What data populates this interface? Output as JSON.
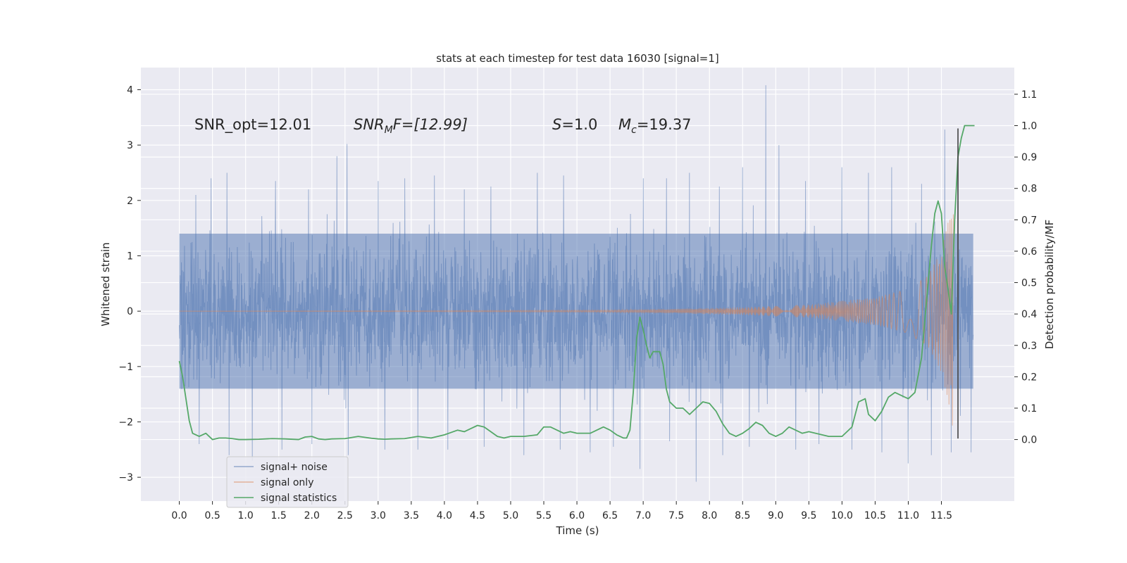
{
  "chart_data": {
    "type": "line",
    "title": "stats at each timestep for test data 16030 [signal=1]",
    "xlabel": "Time (s)",
    "ylabel_left": "Whitened strain",
    "ylabel_right": "Detection probability/MF",
    "xlim": [
      -0.58,
      12.6
    ],
    "ylim_left": [
      -3.43,
      4.4
    ],
    "ylim_right": [
      -0.196,
      1.185
    ],
    "x_ticks": [
      0.0,
      0.5,
      1.0,
      1.5,
      2.0,
      2.5,
      3.0,
      3.5,
      4.0,
      4.5,
      5.0,
      5.5,
      6.0,
      6.5,
      7.0,
      7.5,
      8.0,
      8.5,
      9.0,
      9.5,
      10.0,
      10.5,
      11.0,
      11.5
    ],
    "x_tick_labels": [
      "0.0",
      "0.5",
      "1.0",
      "1.5",
      "2.0",
      "2.5",
      "3.0",
      "3.5",
      "4.0",
      "4.5",
      "5.0",
      "5.5",
      "6.0",
      "6.5",
      "7.0",
      "7.5",
      "8.0",
      "8.5",
      "9.0",
      "9.5",
      "10.0",
      "10.5",
      "11.0",
      "11.5"
    ],
    "y_left_ticks": [
      -3,
      -2,
      -1,
      0,
      1,
      2,
      3,
      4
    ],
    "y_left_tick_labels": [
      "−3",
      "−2",
      "−1",
      "0",
      "1",
      "2",
      "3",
      "4"
    ],
    "y_right_ticks": [
      0.0,
      0.1,
      0.2,
      0.3,
      0.4,
      0.5,
      0.6,
      0.7,
      0.8,
      0.9,
      1.0,
      1.1
    ],
    "y_right_tick_labels": [
      "0.0",
      "0.1",
      "0.2",
      "0.3",
      "0.4",
      "0.5",
      "0.6",
      "0.7",
      "0.8",
      "0.9",
      "1.0",
      "1.1"
    ],
    "annotations": {
      "snr_opt": "SNR_opt=12.01",
      "snr_mf_sym": "SNR",
      "snr_mf_sub": "M",
      "snr_mf_rest": "F=[12.99]",
      "s_sym": "S",
      "s_rest": "=1.0",
      "mc_sym": "M",
      "mc_sub": "c",
      "mc_rest": "=19.37"
    },
    "legend": {
      "location": "lower left",
      "entries": [
        "signal+ noise",
        "signal only",
        "signal statistics"
      ]
    },
    "series": [
      {
        "name": "signal+ noise",
        "axis": "left",
        "color": "#4c72b0",
        "style": "noise-band",
        "x_range": [
          0.0,
          11.98
        ],
        "typical_range": [
          -1.4,
          1.4
        ],
        "peak_max": 4.08,
        "peak_min": -3.08,
        "upper_spikes": [
          [
            0.25,
            2.1
          ],
          [
            0.48,
            2.4
          ],
          [
            0.72,
            2.5
          ],
          [
            1.1,
            2.3
          ],
          [
            1.45,
            2.35
          ],
          [
            1.95,
            2.2
          ],
          [
            2.38,
            2.8
          ],
          [
            2.53,
            3.02
          ],
          [
            3.0,
            2.35
          ],
          [
            3.4,
            2.4
          ],
          [
            3.85,
            2.45
          ],
          [
            4.3,
            2.2
          ],
          [
            4.7,
            2.25
          ],
          [
            5.4,
            2.5
          ],
          [
            5.8,
            2.45
          ],
          [
            6.2,
            2.3
          ],
          [
            6.55,
            2.2
          ],
          [
            7.0,
            2.4
          ],
          [
            7.35,
            2.4
          ],
          [
            7.7,
            2.5
          ],
          [
            8.15,
            2.25
          ],
          [
            8.5,
            2.6
          ],
          [
            8.85,
            4.08
          ],
          [
            9.05,
            3.0
          ],
          [
            9.45,
            2.35
          ],
          [
            10.0,
            2.6
          ],
          [
            10.4,
            2.5
          ],
          [
            10.75,
            2.6
          ],
          [
            11.2,
            2.3
          ],
          [
            11.55,
            3.28
          ],
          [
            11.75,
            3.3
          ],
          [
            11.95,
            2.4
          ]
        ],
        "lower_spikes": [
          [
            0.3,
            -2.4
          ],
          [
            0.75,
            -2.6
          ],
          [
            1.1,
            -2.7
          ],
          [
            1.55,
            -2.5
          ],
          [
            2.0,
            -2.4
          ],
          [
            2.55,
            -2.6
          ],
          [
            3.1,
            -2.5
          ],
          [
            3.6,
            -2.5
          ],
          [
            4.05,
            -2.5
          ],
          [
            4.6,
            -2.45
          ],
          [
            5.2,
            -2.6
          ],
          [
            5.75,
            -2.5
          ],
          [
            6.2,
            -2.55
          ],
          [
            6.55,
            -2.45
          ],
          [
            6.95,
            -2.85
          ],
          [
            7.4,
            -2.35
          ],
          [
            7.8,
            -3.08
          ],
          [
            8.2,
            -2.6
          ],
          [
            8.6,
            -2.45
          ],
          [
            9.3,
            -2.5
          ],
          [
            9.65,
            -2.4
          ],
          [
            10.15,
            -2.5
          ],
          [
            10.6,
            -2.55
          ],
          [
            11.0,
            -2.75
          ],
          [
            11.35,
            -2.6
          ],
          [
            11.65,
            -2.55
          ],
          [
            11.95,
            -2.55
          ]
        ]
      },
      {
        "name": "signal only",
        "axis": "left",
        "color": "#dd8452",
        "style": "chirp",
        "x_range": [
          0.0,
          11.68
        ],
        "amplitude_envelope": [
          [
            0.0,
            0.0
          ],
          [
            6.5,
            0.02
          ],
          [
            7.5,
            0.04
          ],
          [
            8.5,
            0.07
          ],
          [
            9.5,
            0.12
          ],
          [
            10.5,
            0.25
          ],
          [
            11.0,
            0.4
          ],
          [
            11.3,
            0.65
          ],
          [
            11.5,
            1.1
          ],
          [
            11.6,
            1.6
          ],
          [
            11.67,
            2.1
          ]
        ]
      },
      {
        "name": "signal statistics",
        "axis": "right",
        "color": "#55a868",
        "x": [
          0.0,
          0.05,
          0.1,
          0.15,
          0.2,
          0.3,
          0.4,
          0.5,
          0.6,
          0.7,
          0.8,
          0.9,
          1.0,
          1.2,
          1.4,
          1.6,
          1.8,
          1.9,
          2.0,
          2.1,
          2.2,
          2.3,
          2.5,
          2.7,
          2.9,
          3.0,
          3.1,
          3.2,
          3.4,
          3.6,
          3.8,
          4.0,
          4.2,
          4.3,
          4.4,
          4.5,
          4.6,
          4.7,
          4.8,
          4.9,
          5.0,
          5.2,
          5.4,
          5.5,
          5.6,
          5.7,
          5.8,
          5.9,
          6.0,
          6.2,
          6.4,
          6.5,
          6.6,
          6.7,
          6.75,
          6.8,
          6.85,
          6.9,
          6.95,
          7.0,
          7.05,
          7.1,
          7.15,
          7.2,
          7.25,
          7.3,
          7.35,
          7.4,
          7.5,
          7.6,
          7.7,
          7.8,
          7.9,
          8.0,
          8.1,
          8.2,
          8.3,
          8.4,
          8.5,
          8.6,
          8.7,
          8.8,
          8.9,
          9.0,
          9.1,
          9.2,
          9.3,
          9.4,
          9.5,
          9.6,
          9.8,
          10.0,
          10.15,
          10.25,
          10.35,
          10.4,
          10.5,
          10.6,
          10.7,
          10.8,
          10.9,
          11.0,
          11.1,
          11.2,
          11.3,
          11.35,
          11.4,
          11.45,
          11.5,
          11.55,
          11.6,
          11.65,
          11.7,
          11.75,
          11.8,
          11.85,
          11.9,
          11.95,
          12.0
        ],
        "y": [
          0.25,
          0.2,
          0.13,
          0.06,
          0.02,
          0.01,
          0.02,
          0.0,
          0.005,
          0.005,
          0.003,
          0.0,
          0.0,
          0.001,
          0.003,
          0.002,
          0.0,
          0.008,
          0.01,
          0.002,
          0.0,
          0.002,
          0.003,
          0.01,
          0.004,
          0.002,
          0.001,
          0.002,
          0.003,
          0.01,
          0.005,
          0.015,
          0.03,
          0.025,
          0.035,
          0.045,
          0.04,
          0.025,
          0.01,
          0.005,
          0.01,
          0.01,
          0.015,
          0.04,
          0.04,
          0.03,
          0.02,
          0.025,
          0.02,
          0.02,
          0.04,
          0.03,
          0.015,
          0.005,
          0.005,
          0.03,
          0.15,
          0.32,
          0.39,
          0.35,
          0.3,
          0.26,
          0.28,
          0.28,
          0.28,
          0.24,
          0.16,
          0.12,
          0.1,
          0.1,
          0.08,
          0.1,
          0.12,
          0.115,
          0.09,
          0.05,
          0.02,
          0.01,
          0.02,
          0.035,
          0.055,
          0.045,
          0.02,
          0.01,
          0.02,
          0.04,
          0.03,
          0.02,
          0.025,
          0.02,
          0.01,
          0.01,
          0.04,
          0.12,
          0.13,
          0.08,
          0.06,
          0.09,
          0.135,
          0.15,
          0.14,
          0.13,
          0.15,
          0.26,
          0.5,
          0.62,
          0.72,
          0.76,
          0.72,
          0.55,
          0.48,
          0.4,
          0.7,
          0.9,
          0.96,
          1.0,
          1.0,
          1.0,
          1.0
        ]
      },
      {
        "name": "marker",
        "axis": "left",
        "color": "#424242",
        "x": 11.75,
        "y_range": [
          -2.3,
          3.3
        ]
      }
    ]
  }
}
